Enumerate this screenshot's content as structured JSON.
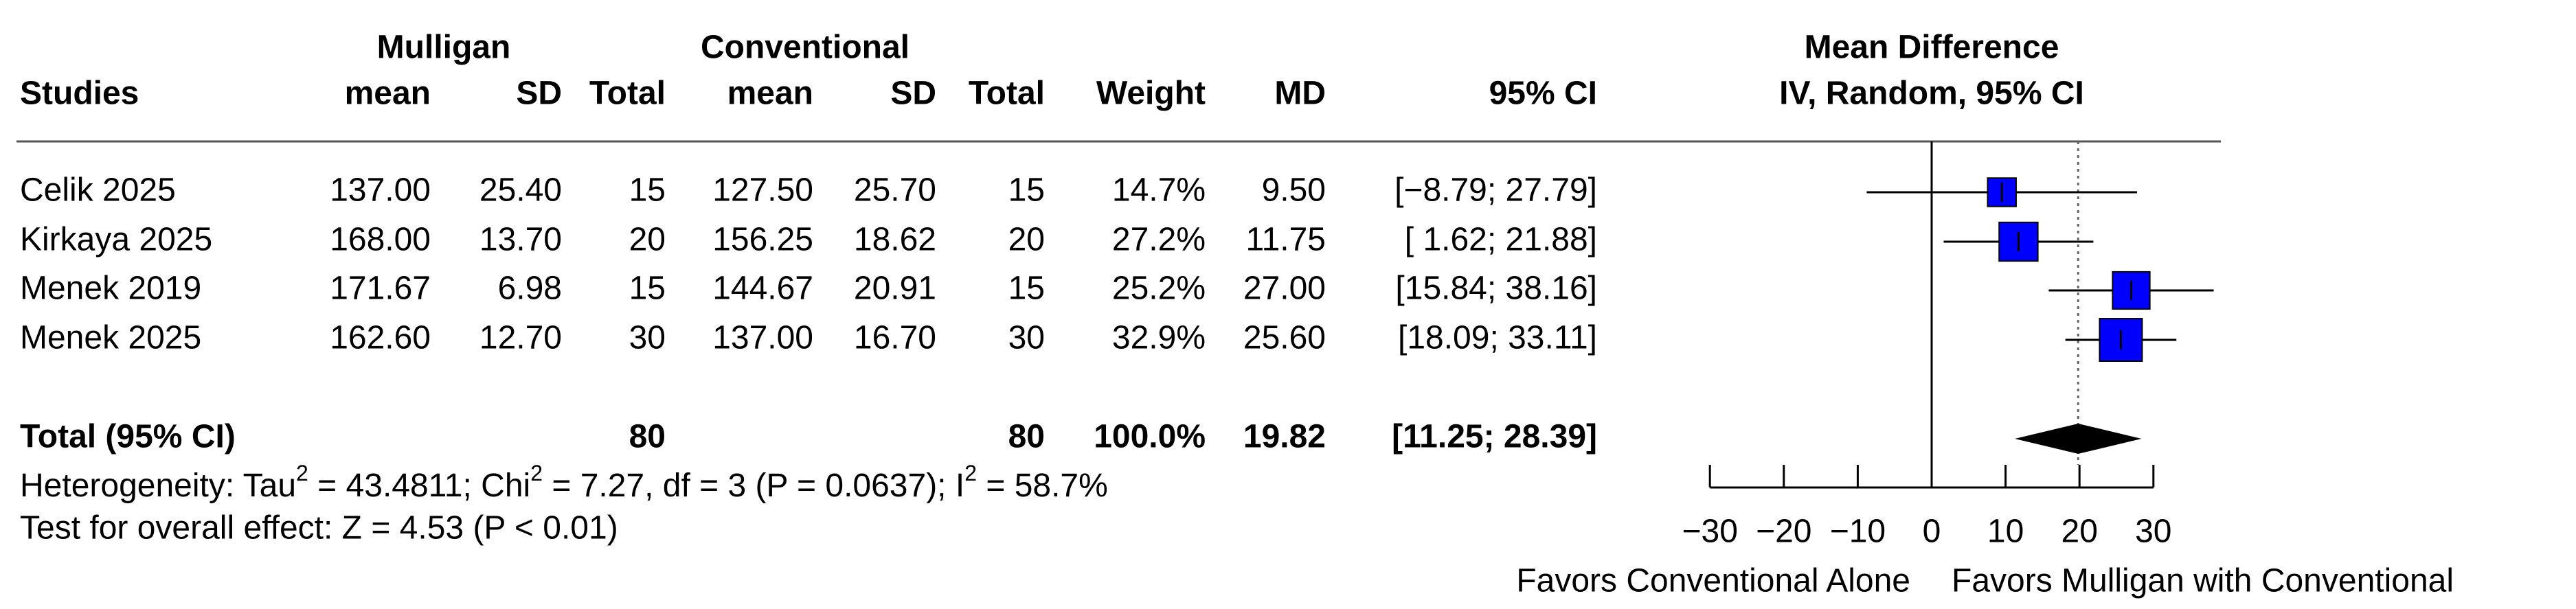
{
  "chart_data": {
    "type": "forest",
    "header": {
      "group1": "Mulligan",
      "group2": "Conventional",
      "plot_title": "Mean Difference",
      "plot_subtitle": "IV, Random, 95% CI"
    },
    "columns": [
      "Studies",
      "mean",
      "SD",
      "Total",
      "mean",
      "SD",
      "Total",
      "Weight",
      "MD",
      "95% CI"
    ],
    "categories": [
      "Celik 2025",
      "Kirkaya 2025",
      "Menek 2019",
      "Menek 2025"
    ],
    "rows": [
      [
        "137.00",
        "25.40",
        "15",
        "127.50",
        "25.70",
        "15"
      ],
      [
        "168.00",
        "13.70",
        "20",
        "156.25",
        "18.62",
        "20"
      ],
      [
        "171.67",
        "6.98",
        "15",
        "144.67",
        "20.91",
        "15"
      ],
      [
        "162.60",
        "12.70",
        "30",
        "137.00",
        "16.70",
        "30"
      ]
    ],
    "weights": [
      14.7,
      27.2,
      25.2,
      32.9
    ],
    "weight_labels": [
      "14.7%",
      "27.2%",
      "25.2%",
      "32.9%"
    ],
    "values": [
      9.5,
      11.75,
      27,
      25.6
    ],
    "value_labels": [
      "9.50",
      "11.75",
      "27.00",
      "25.60"
    ],
    "ci_lower": [
      -8.79,
      1.62,
      15.84,
      18.09
    ],
    "ci_upper": [
      27.79,
      21.88,
      38.16,
      33.11
    ],
    "ci_labels": [
      "[−8.79; 27.79]",
      "[ 1.62; 21.88]",
      "[15.84; 38.16]",
      "[18.09; 33.11]"
    ],
    "total": {
      "label": "Total (95% CI)",
      "n1": "80",
      "n2": "80",
      "weight_label": "100.0%",
      "value": 19.82,
      "value_label": "19.82",
      "ci_lower": 11.25,
      "ci_upper": 28.39,
      "ci_label": "[11.25; 28.39]"
    },
    "heterogeneity": [
      "Heterogeneity: Tau",
      "2",
      " = 43.4811; Chi",
      "2",
      " = 7.27, df = 3 (P = 0.0637); I",
      "2",
      " = 58.7%"
    ],
    "overall_effect": "Test for overall effect: Z = 4.53 (P < 0.01)",
    "xlim": [
      -30,
      30
    ],
    "xticks": [
      {
        "value": -30,
        "label": "−30"
      },
      {
        "value": -20,
        "label": "−20"
      },
      {
        "value": -10,
        "label": "−10"
      },
      0,
      10,
      20,
      30
    ],
    "favors_left": "Favors Conventional Alone",
    "favors_right": "Favors Mulligan with Conventional",
    "square_color": "#0000ff",
    "diamond_color": "#000000"
  }
}
